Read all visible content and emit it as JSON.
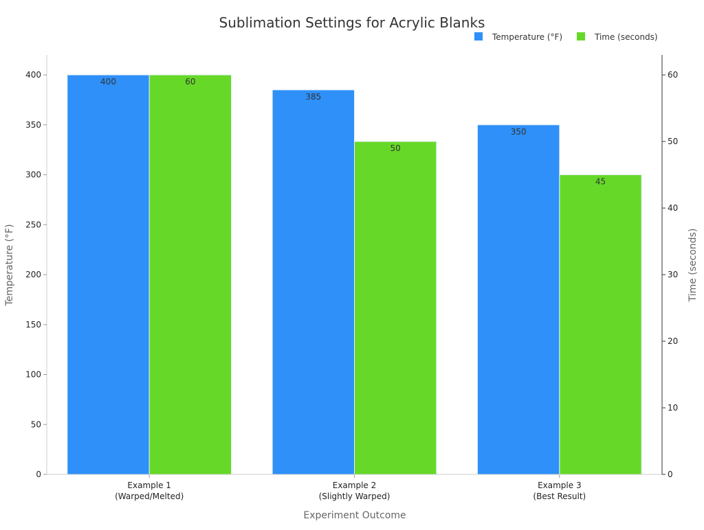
{
  "chart_data": {
    "type": "bar",
    "title": "Sublimation Settings for Acrylic Blanks",
    "xlabel": "Experiment Outcome",
    "ylabel": "Temperature (°F)",
    "y2label": "Time (seconds)",
    "categories": [
      [
        "Example 1",
        "(Warped/Melted)"
      ],
      [
        "Example 2",
        "(Slightly Warped)"
      ],
      [
        "Example 3",
        "(Best Result)"
      ]
    ],
    "series": [
      {
        "name": "Temperature (°F)",
        "axis": "left",
        "color": "#2e90f8",
        "values": [
          400,
          385,
          350
        ],
        "labels": [
          "400",
          "385",
          "350"
        ]
      },
      {
        "name": "Time (seconds)",
        "axis": "right",
        "color": "#66d928",
        "values": [
          60,
          50,
          45
        ],
        "labels": [
          "60",
          "50",
          "45"
        ]
      }
    ],
    "ylim": [
      0,
      420
    ],
    "y2lim": [
      0,
      63
    ],
    "yticks": [
      0,
      50,
      100,
      150,
      200,
      250,
      300,
      350,
      400
    ],
    "y2ticks": [
      0,
      10,
      20,
      30,
      40,
      50,
      60
    ],
    "grid": false,
    "legend": "top-right"
  }
}
